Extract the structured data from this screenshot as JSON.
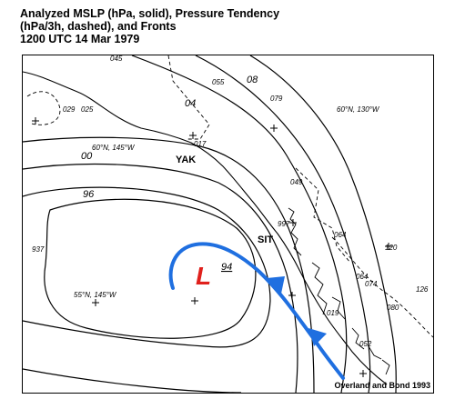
{
  "title": {
    "line1": "Analyzed MSLP (hPa, solid), Pressure Tendency",
    "line2": "(hPa/3h, dashed), and Fronts",
    "line3": "1200 UTC  14 Mar 1979"
  },
  "map": {
    "credit": "Overland and Bond 1993",
    "low_symbol": "L",
    "low_pressure_label": "94",
    "isobar_labels": [
      "04",
      "00",
      "96",
      "08"
    ],
    "latlon_labels": [
      "60°N, 145°W",
      "60°N, 130°W",
      "55°N, 145°W"
    ],
    "station_labels": [
      "YAK",
      "SIT"
    ],
    "tendency_labels": [
      "045",
      "055",
      "079",
      "029",
      "025",
      "017",
      "049",
      "997",
      "064",
      "120",
      "064",
      "074",
      "126",
      "019",
      "080",
      "052",
      "937"
    ],
    "colors": {
      "front": "#1f6fe0",
      "low_symbol": "#e0201c",
      "isobars": "#000000"
    }
  }
}
